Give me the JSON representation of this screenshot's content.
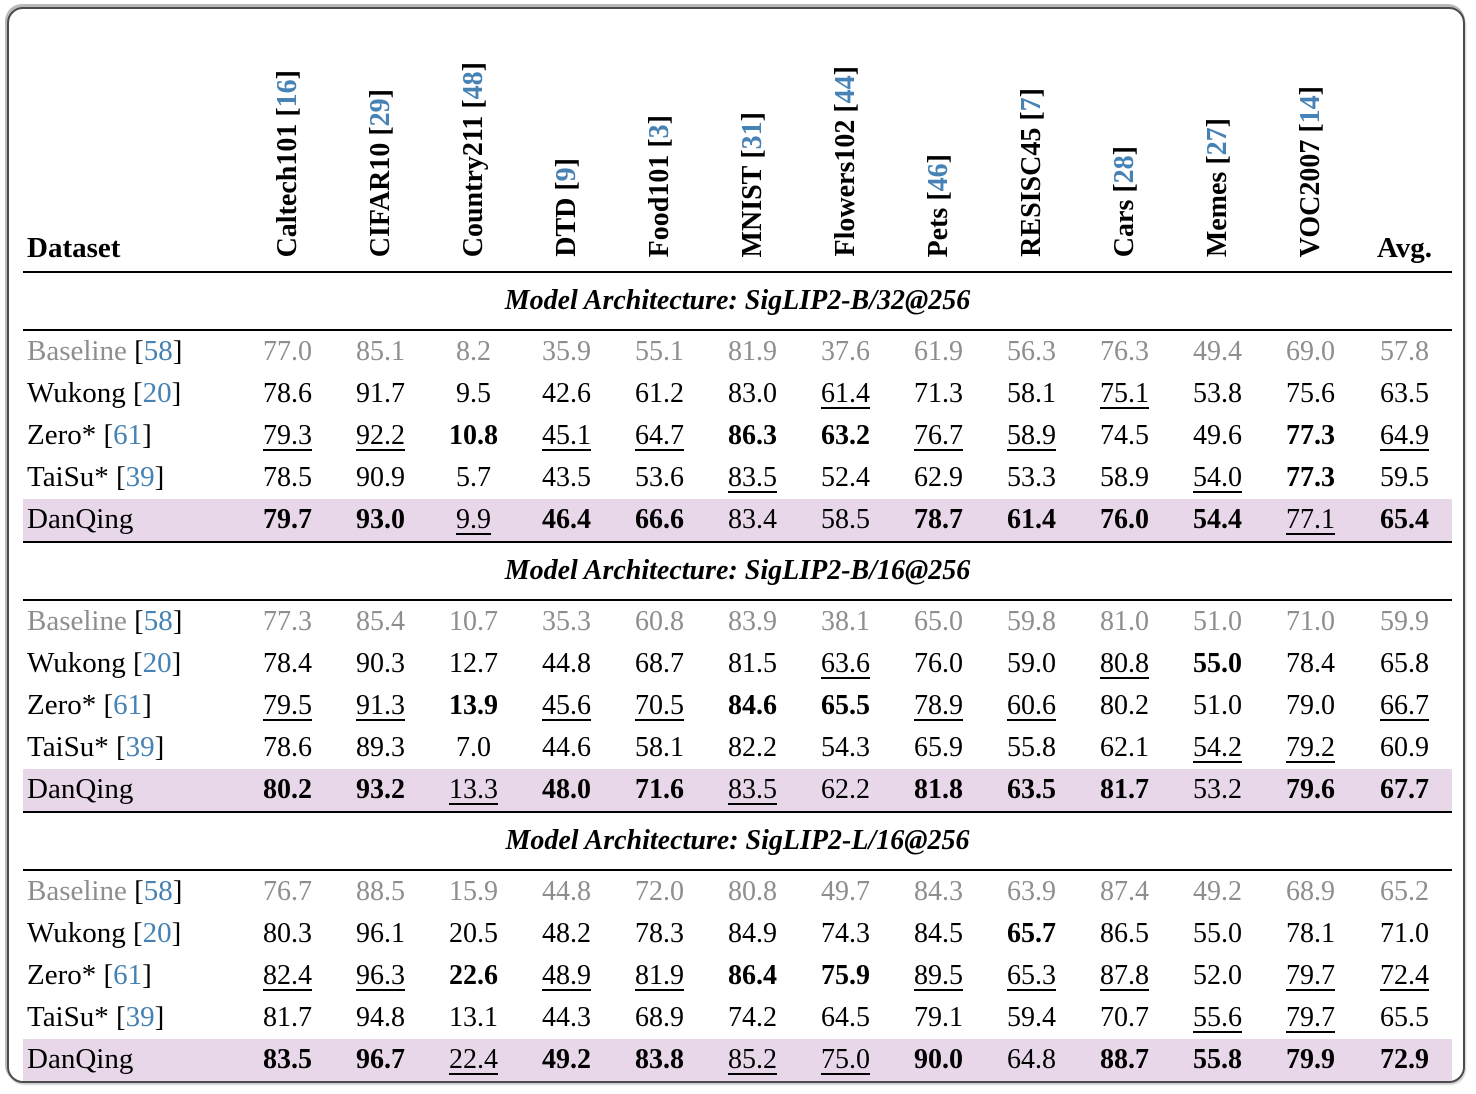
{
  "colors": {
    "citation_blue": "#4682b4",
    "baseline_gray": "#8e8e8e",
    "highlight_row": "#e7d7e9"
  },
  "table": {
    "dataset_header": "Dataset",
    "avg_header": "Avg.",
    "columns": [
      {
        "name": "Caltech101",
        "cite": "16"
      },
      {
        "name": "CIFAR10",
        "cite": "29"
      },
      {
        "name": "Country211",
        "cite": "48"
      },
      {
        "name": "DTD",
        "cite": "9"
      },
      {
        "name": "Food101",
        "cite": "3"
      },
      {
        "name": "MNIST",
        "cite": "31"
      },
      {
        "name": "Flowers102",
        "cite": "44"
      },
      {
        "name": "Pets",
        "cite": "46"
      },
      {
        "name": "RESISC45",
        "cite": "7"
      },
      {
        "name": "Cars",
        "cite": "28"
      },
      {
        "name": "Memes",
        "cite": "27"
      },
      {
        "name": "VOC2007",
        "cite": "14"
      }
    ],
    "format_legend": {
      "b": "bold = best",
      "u": "underline = second best",
      "": "plain"
    },
    "sections": [
      {
        "title": "Model Architecture: SigLIP2-B/32@256",
        "rows": [
          {
            "label": "Baseline",
            "cite": "58",
            "type": "baseline",
            "cells": [
              [
                "77.0",
                ""
              ],
              [
                "85.1",
                ""
              ],
              [
                "8.2",
                ""
              ],
              [
                "35.9",
                ""
              ],
              [
                "55.1",
                ""
              ],
              [
                "81.9",
                ""
              ],
              [
                "37.6",
                ""
              ],
              [
                "61.9",
                ""
              ],
              [
                "56.3",
                ""
              ],
              [
                "76.3",
                ""
              ],
              [
                "49.4",
                ""
              ],
              [
                "69.0",
                ""
              ],
              [
                "57.8",
                ""
              ]
            ]
          },
          {
            "label": "Wukong",
            "cite": "20",
            "type": "normal",
            "cells": [
              [
                "78.6",
                ""
              ],
              [
                "91.7",
                ""
              ],
              [
                "9.5",
                ""
              ],
              [
                "42.6",
                ""
              ],
              [
                "61.2",
                ""
              ],
              [
                "83.0",
                ""
              ],
              [
                "61.4",
                "u"
              ],
              [
                "71.3",
                ""
              ],
              [
                "58.1",
                ""
              ],
              [
                "75.1",
                "u"
              ],
              [
                "53.8",
                ""
              ],
              [
                "75.6",
                ""
              ],
              [
                "63.5",
                ""
              ]
            ]
          },
          {
            "label": "Zero*",
            "cite": "61",
            "type": "normal",
            "cells": [
              [
                "79.3",
                "u"
              ],
              [
                "92.2",
                "u"
              ],
              [
                "10.8",
                "b"
              ],
              [
                "45.1",
                "u"
              ],
              [
                "64.7",
                "u"
              ],
              [
                "86.3",
                "b"
              ],
              [
                "63.2",
                "b"
              ],
              [
                "76.7",
                "u"
              ],
              [
                "58.9",
                "u"
              ],
              [
                "74.5",
                ""
              ],
              [
                "49.6",
                ""
              ],
              [
                "77.3",
                "b"
              ],
              [
                "64.9",
                "u"
              ]
            ]
          },
          {
            "label": "TaiSu*",
            "cite": "39",
            "type": "normal",
            "cells": [
              [
                "78.5",
                ""
              ],
              [
                "90.9",
                ""
              ],
              [
                "5.7",
                ""
              ],
              [
                "43.5",
                ""
              ],
              [
                "53.6",
                ""
              ],
              [
                "83.5",
                "u"
              ],
              [
                "52.4",
                ""
              ],
              [
                "62.9",
                ""
              ],
              [
                "53.3",
                ""
              ],
              [
                "58.9",
                ""
              ],
              [
                "54.0",
                "u"
              ],
              [
                "77.3",
                "b"
              ],
              [
                "59.5",
                ""
              ]
            ]
          },
          {
            "label": "DanQing",
            "cite": "",
            "type": "highlight",
            "cells": [
              [
                "79.7",
                "b"
              ],
              [
                "93.0",
                "b"
              ],
              [
                "9.9",
                "u"
              ],
              [
                "46.4",
                "b"
              ],
              [
                "66.6",
                "b"
              ],
              [
                "83.4",
                ""
              ],
              [
                "58.5",
                ""
              ],
              [
                "78.7",
                "b"
              ],
              [
                "61.4",
                "b"
              ],
              [
                "76.0",
                "b"
              ],
              [
                "54.4",
                "b"
              ],
              [
                "77.1",
                "u"
              ],
              [
                "65.4",
                "b"
              ]
            ]
          }
        ]
      },
      {
        "title": "Model Architecture: SigLIP2-B/16@256",
        "rows": [
          {
            "label": "Baseline",
            "cite": "58",
            "type": "baseline",
            "cells": [
              [
                "77.3",
                ""
              ],
              [
                "85.4",
                ""
              ],
              [
                "10.7",
                ""
              ],
              [
                "35.3",
                ""
              ],
              [
                "60.8",
                ""
              ],
              [
                "83.9",
                ""
              ],
              [
                "38.1",
                ""
              ],
              [
                "65.0",
                ""
              ],
              [
                "59.8",
                ""
              ],
              [
                "81.0",
                ""
              ],
              [
                "51.0",
                ""
              ],
              [
                "71.0",
                ""
              ],
              [
                "59.9",
                ""
              ]
            ]
          },
          {
            "label": "Wukong",
            "cite": "20",
            "type": "normal",
            "cells": [
              [
                "78.4",
                ""
              ],
              [
                "90.3",
                ""
              ],
              [
                "12.7",
                ""
              ],
              [
                "44.8",
                ""
              ],
              [
                "68.7",
                ""
              ],
              [
                "81.5",
                ""
              ],
              [
                "63.6",
                "u"
              ],
              [
                "76.0",
                ""
              ],
              [
                "59.0",
                ""
              ],
              [
                "80.8",
                "u"
              ],
              [
                "55.0",
                "b"
              ],
              [
                "78.4",
                ""
              ],
              [
                "65.8",
                ""
              ]
            ]
          },
          {
            "label": "Zero*",
            "cite": "61",
            "type": "normal",
            "cells": [
              [
                "79.5",
                "u"
              ],
              [
                "91.3",
                "u"
              ],
              [
                "13.9",
                "b"
              ],
              [
                "45.6",
                "u"
              ],
              [
                "70.5",
                "u"
              ],
              [
                "84.6",
                "b"
              ],
              [
                "65.5",
                "b"
              ],
              [
                "78.9",
                "u"
              ],
              [
                "60.6",
                "u"
              ],
              [
                "80.2",
                ""
              ],
              [
                "51.0",
                ""
              ],
              [
                "79.0",
                ""
              ],
              [
                "66.7",
                "u"
              ]
            ]
          },
          {
            "label": "TaiSu*",
            "cite": "39",
            "type": "normal",
            "cells": [
              [
                "78.6",
                ""
              ],
              [
                "89.3",
                ""
              ],
              [
                "7.0",
                ""
              ],
              [
                "44.6",
                ""
              ],
              [
                "58.1",
                ""
              ],
              [
                "82.2",
                ""
              ],
              [
                "54.3",
                ""
              ],
              [
                "65.9",
                ""
              ],
              [
                "55.8",
                ""
              ],
              [
                "62.1",
                ""
              ],
              [
                "54.2",
                "u"
              ],
              [
                "79.2",
                "u"
              ],
              [
                "60.9",
                ""
              ]
            ]
          },
          {
            "label": "DanQing",
            "cite": "",
            "type": "highlight",
            "cells": [
              [
                "80.2",
                "b"
              ],
              [
                "93.2",
                "b"
              ],
              [
                "13.3",
                "u"
              ],
              [
                "48.0",
                "b"
              ],
              [
                "71.6",
                "b"
              ],
              [
                "83.5",
                "u"
              ],
              [
                "62.2",
                ""
              ],
              [
                "81.8",
                "b"
              ],
              [
                "63.5",
                "b"
              ],
              [
                "81.7",
                "b"
              ],
              [
                "53.2",
                ""
              ],
              [
                "79.6",
                "b"
              ],
              [
                "67.7",
                "b"
              ]
            ]
          }
        ]
      },
      {
        "title": "Model Architecture: SigLIP2-L/16@256",
        "rows": [
          {
            "label": "Baseline",
            "cite": "58",
            "type": "baseline",
            "cells": [
              [
                "76.7",
                ""
              ],
              [
                "88.5",
                ""
              ],
              [
                "15.9",
                ""
              ],
              [
                "44.8",
                ""
              ],
              [
                "72.0",
                ""
              ],
              [
                "80.8",
                ""
              ],
              [
                "49.7",
                ""
              ],
              [
                "84.3",
                ""
              ],
              [
                "63.9",
                ""
              ],
              [
                "87.4",
                ""
              ],
              [
                "49.2",
                ""
              ],
              [
                "68.9",
                ""
              ],
              [
                "65.2",
                ""
              ]
            ]
          },
          {
            "label": "Wukong",
            "cite": "20",
            "type": "normal",
            "cells": [
              [
                "80.3",
                ""
              ],
              [
                "96.1",
                ""
              ],
              [
                "20.5",
                ""
              ],
              [
                "48.2",
                ""
              ],
              [
                "78.3",
                ""
              ],
              [
                "84.9",
                ""
              ],
              [
                "74.3",
                ""
              ],
              [
                "84.5",
                ""
              ],
              [
                "65.7",
                "b"
              ],
              [
                "86.5",
                ""
              ],
              [
                "55.0",
                ""
              ],
              [
                "78.1",
                ""
              ],
              [
                "71.0",
                ""
              ]
            ]
          },
          {
            "label": "Zero*",
            "cite": "61",
            "type": "normal",
            "cells": [
              [
                "82.4",
                "u"
              ],
              [
                "96.3",
                "u"
              ],
              [
                "22.6",
                "b"
              ],
              [
                "48.9",
                "u"
              ],
              [
                "81.9",
                "u"
              ],
              [
                "86.4",
                "b"
              ],
              [
                "75.9",
                "b"
              ],
              [
                "89.5",
                "u"
              ],
              [
                "65.3",
                "u"
              ],
              [
                "87.8",
                "u"
              ],
              [
                "52.0",
                ""
              ],
              [
                "79.7",
                "u"
              ],
              [
                "72.4",
                "u"
              ]
            ]
          },
          {
            "label": "TaiSu*",
            "cite": "39",
            "type": "normal",
            "cells": [
              [
                "81.7",
                ""
              ],
              [
                "94.8",
                ""
              ],
              [
                "13.1",
                ""
              ],
              [
                "44.3",
                ""
              ],
              [
                "68.9",
                ""
              ],
              [
                "74.2",
                ""
              ],
              [
                "64.5",
                ""
              ],
              [
                "79.1",
                ""
              ],
              [
                "59.4",
                ""
              ],
              [
                "70.7",
                ""
              ],
              [
                "55.6",
                "u"
              ],
              [
                "79.7",
                "u"
              ],
              [
                "65.5",
                ""
              ]
            ]
          },
          {
            "label": "DanQing",
            "cite": "",
            "type": "highlight",
            "cells": [
              [
                "83.5",
                "b"
              ],
              [
                "96.7",
                "b"
              ],
              [
                "22.4",
                "u"
              ],
              [
                "49.2",
                "b"
              ],
              [
                "83.8",
                "b"
              ],
              [
                "85.2",
                "u"
              ],
              [
                "75.0",
                "u"
              ],
              [
                "90.0",
                "b"
              ],
              [
                "64.8",
                ""
              ],
              [
                "88.7",
                "b"
              ],
              [
                "55.8",
                "b"
              ],
              [
                "79.9",
                "b"
              ],
              [
                "72.9",
                "b"
              ]
            ]
          }
        ]
      }
    ]
  }
}
